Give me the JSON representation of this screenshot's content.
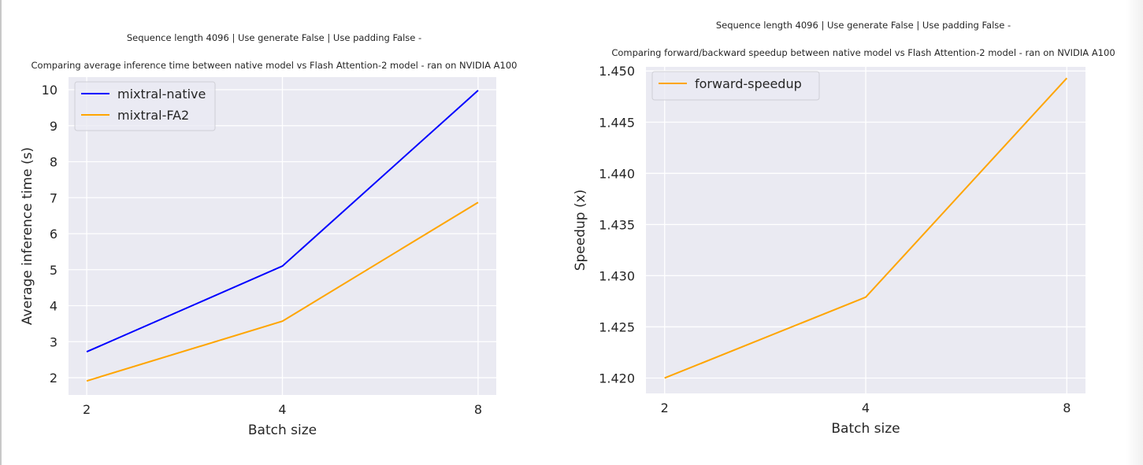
{
  "chart_data": [
    {
      "type": "line",
      "title_line1": "Sequence length 4096 | Use generate False | Use padding False -",
      "title_line2": "Comparing average inference time between native model vs Flash Attention-2 model - ran on NVIDIA A100",
      "xlabel": "Batch size",
      "ylabel": "Average inference time (s)",
      "categories": [
        "2",
        "4",
        "8"
      ],
      "yticks": [
        2,
        3,
        4,
        5,
        6,
        7,
        8,
        9,
        10
      ],
      "ylim": [
        1.52,
        10.35
      ],
      "grid": true,
      "legend_position": "top-left",
      "background": "#eaeaf2",
      "series": [
        {
          "name": "mixtral-native",
          "color": "#0000ff",
          "values": [
            2.72,
            5.1,
            9.98
          ]
        },
        {
          "name": "mixtral-FA2",
          "color": "#ffa500",
          "values": [
            1.91,
            3.57,
            6.87
          ]
        }
      ]
    },
    {
      "type": "line",
      "title_line1": "Sequence length 4096 | Use generate False | Use padding False -",
      "title_line2": "Comparing forward/backward speedup between native model vs Flash Attention-2 model - ran on NVIDIA A100",
      "xlabel": "Batch size",
      "ylabel": "Speedup (x)",
      "categories": [
        "2",
        "4",
        "8"
      ],
      "yticks": [
        "1.420",
        "1.425",
        "1.430",
        "1.435",
        "1.440",
        "1.445",
        "1.450"
      ],
      "ylim": [
        1.4185,
        1.4504
      ],
      "grid": true,
      "legend_position": "top-left",
      "background": "#eaeaf2",
      "series": [
        {
          "name": "forward-speedup",
          "color": "#ffa500",
          "values": [
            1.42,
            1.4279,
            1.4493
          ]
        }
      ]
    }
  ]
}
